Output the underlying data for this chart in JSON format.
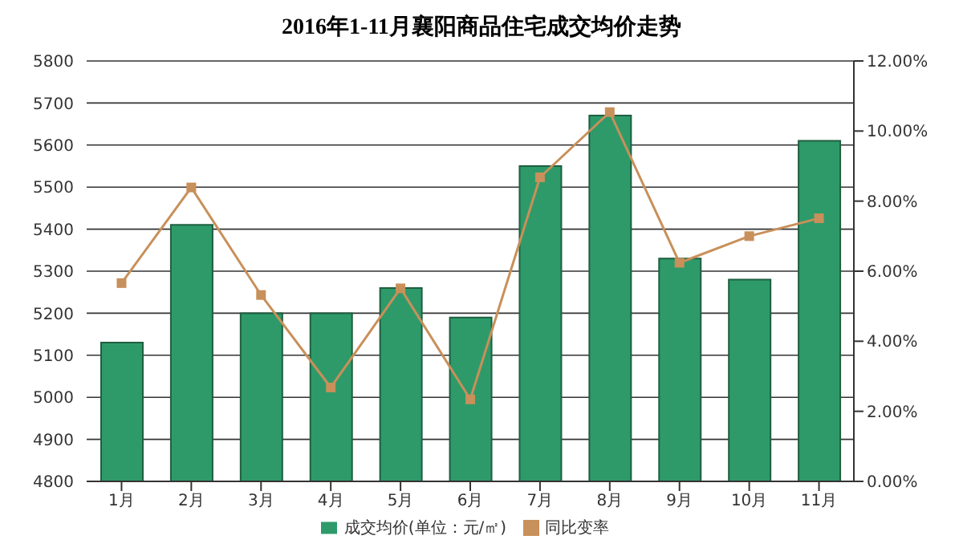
{
  "chart_data": {
    "type": "bar",
    "title": "2016年1-11月襄阳商品住宅成交均价走势",
    "categories": [
      "1月",
      "2月",
      "3月",
      "4月",
      "5月",
      "6月",
      "7月",
      "8月",
      "9月",
      "10月",
      "11月"
    ],
    "series": [
      {
        "name": "成交均价(单位：元/㎡)",
        "color": "#2e9a6a",
        "values": [
          5130,
          5410,
          5200,
          5200,
          5260,
          5190,
          5550,
          5670,
          5330,
          5280,
          5610
        ]
      },
      {
        "name": "同比变率",
        "type": "line",
        "axis": "y2",
        "color": "#c8905a",
        "marker": "square",
        "values": [
          5.66,
          8.39,
          5.32,
          2.68,
          5.51,
          2.34,
          8.68,
          10.54,
          6.24,
          7.0,
          7.51
        ]
      }
    ],
    "ylim": [
      4800,
      5800
    ],
    "yticks": [
      4800,
      4900,
      5000,
      5100,
      5200,
      5300,
      5400,
      5500,
      5600,
      5700,
      5800
    ],
    "y2lim": [
      0,
      12
    ],
    "y2ticks": [
      {
        "value": 0,
        "label": "0.00%"
      },
      {
        "value": 2,
        "label": "2.00%"
      },
      {
        "value": 4,
        "label": "4.00%"
      },
      {
        "value": 6,
        "label": "6.00%"
      },
      {
        "value": 8,
        "label": "8.00%"
      },
      {
        "value": 10,
        "label": "10.00%"
      },
      {
        "value": 12,
        "label": "12.00%"
      }
    ],
    "grid": "y",
    "legend": "bottom"
  }
}
